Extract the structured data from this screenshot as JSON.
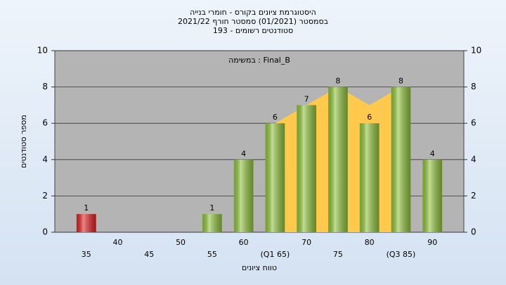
{
  "chart_data": {
    "type": "bar",
    "title": [
      "היסטוגרמת ציונים בקורס - חומרי בנייה",
      "בסמסטר  (01/2021)  סמסטר חורף 2021/22",
      "סטודנטים רשומים - 193"
    ],
    "annotation": "במשימה : Final_B",
    "xlabel": "טווח ציונים",
    "ylabel": "מספר סטודנטים",
    "x": [
      35,
      40,
      45,
      50,
      55,
      60,
      65,
      70,
      75,
      80,
      85,
      90
    ],
    "values": [
      1,
      0,
      0,
      0,
      1,
      4,
      6,
      7,
      8,
      6,
      8,
      4
    ],
    "colors": [
      "#e02020",
      "#8fc23a",
      "#8fc23a",
      "#8fc23a",
      "#8fc23a",
      "#8fc23a",
      "#8fc23a",
      "#8fc23a",
      "#8fc23a",
      "#8fc23a",
      "#8fc23a",
      "#8fc23a"
    ],
    "band": {
      "color": "#ffc94d",
      "values": [
        null,
        null,
        null,
        null,
        null,
        null,
        6,
        7,
        8,
        7,
        8,
        null
      ]
    },
    "xlim": [
      30,
      95
    ],
    "xticks": [
      35,
      40,
      45,
      50,
      55,
      60,
      {
        "value": 65,
        "label": "(Q1 65)"
      },
      70,
      75,
      80,
      {
        "value": 85,
        "label": "(Q3 85)"
      },
      90
    ],
    "ylim": [
      0,
      10
    ],
    "yticks": [
      0,
      2,
      4,
      6,
      8,
      10
    ],
    "y2lim": [
      0,
      10
    ],
    "y2ticks": [
      0,
      2,
      4,
      6,
      8,
      10
    ],
    "grid": true
  }
}
